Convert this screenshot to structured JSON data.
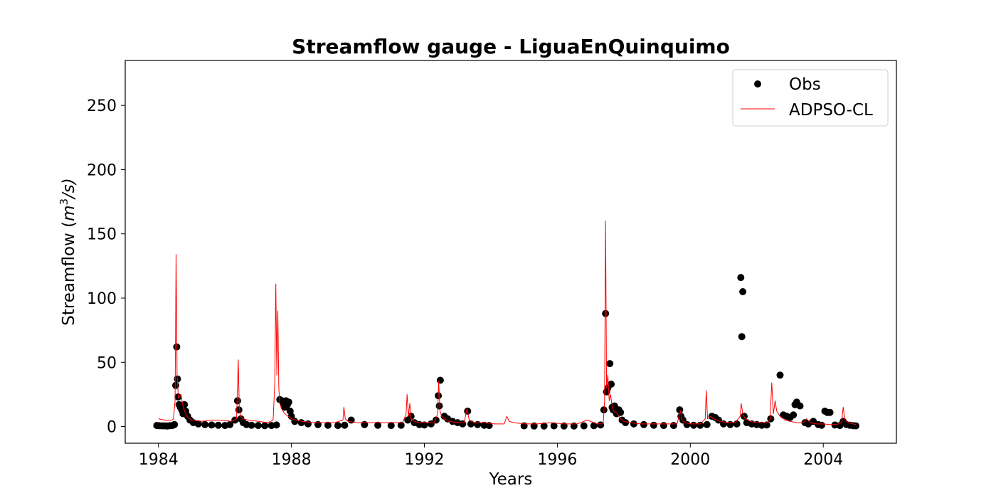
{
  "chart_data": {
    "type": "line",
    "title": "Streamflow gauge - LiguaEnQuinquimo",
    "xlabel": "Years",
    "ylabel_main": "Streamflow (",
    "ylabel_m": "m",
    "ylabel_exp": "3",
    "ylabel_rest": "/s)",
    "xlim": [
      1983.0,
      2006.2
    ],
    "ylim": [
      -13,
      285
    ],
    "x_ticks": [
      1984,
      1988,
      1992,
      1996,
      2000,
      2004
    ],
    "x_tick_labels": [
      "1984",
      "1988",
      "1992",
      "1996",
      "2000",
      "2004"
    ],
    "y_ticks": [
      0,
      50,
      100,
      150,
      200,
      250
    ],
    "y_tick_labels": [
      "0",
      "50",
      "100",
      "150",
      "200",
      "250"
    ],
    "legend_position": "top-right",
    "colors": {
      "obs": "#000000",
      "sim": "#ff0000"
    },
    "series": [
      {
        "name": "Obs",
        "kind": "scatter",
        "color": "#000000",
        "x": [
          1983.95,
          1984.02,
          1984.1,
          1984.18,
          1984.26,
          1984.34,
          1984.42,
          1984.48,
          1984.52,
          1984.55,
          1984.57,
          1984.59,
          1984.62,
          1984.66,
          1984.7,
          1984.74,
          1984.78,
          1984.82,
          1984.88,
          1984.95,
          1985.05,
          1985.2,
          1985.4,
          1985.6,
          1985.8,
          1986.0,
          1986.15,
          1986.3,
          1986.38,
          1986.42,
          1986.48,
          1986.55,
          1986.65,
          1986.8,
          1987.0,
          1987.2,
          1987.4,
          1987.55,
          1987.65,
          1987.72,
          1987.76,
          1987.8,
          1987.84,
          1987.88,
          1987.92,
          1987.96,
          1988.0,
          1988.1,
          1988.3,
          1988.5,
          1988.8,
          1989.1,
          1989.4,
          1989.6,
          1989.8,
          1990.2,
          1990.6,
          1991.0,
          1991.3,
          1991.5,
          1991.6,
          1991.7,
          1991.85,
          1992.0,
          1992.2,
          1992.35,
          1992.42,
          1992.45,
          1992.48,
          1992.6,
          1992.7,
          1992.85,
          1993.0,
          1993.15,
          1993.3,
          1993.4,
          1993.6,
          1993.8,
          1993.95,
          1995.0,
          1995.3,
          1995.6,
          1995.9,
          1996.2,
          1996.5,
          1996.8,
          1997.1,
          1997.3,
          1997.4,
          1997.45,
          1997.48,
          1997.52,
          1997.58,
          1997.62,
          1997.65,
          1997.68,
          1997.72,
          1997.78,
          1997.85,
          1997.9,
          1997.95,
          1998.05,
          1998.3,
          1998.6,
          1998.9,
          1999.2,
          1999.5,
          1999.68,
          1999.72,
          1999.78,
          1999.9,
          2000.1,
          2000.3,
          2000.5,
          2000.65,
          2000.75,
          2000.85,
          2001.0,
          2001.2,
          2001.4,
          2001.52,
          2001.55,
          2001.58,
          2001.62,
          2001.7,
          2001.85,
          2002.0,
          2002.15,
          2002.3,
          2002.42,
          2002.7,
          2002.8,
          2002.9,
          2003.0,
          2003.1,
          2003.15,
          2003.2,
          2003.3,
          2003.45,
          2003.55,
          2003.7,
          2003.85,
          2003.95,
          2004.05,
          2004.12,
          2004.2,
          2004.35,
          2004.5,
          2004.6,
          2004.7,
          2004.8,
          2004.9,
          2004.98
        ],
        "y": [
          0.8,
          0.6,
          0.5,
          0.5,
          0.4,
          0.6,
          0.8,
          1.5,
          32,
          62,
          37,
          23,
          17,
          15,
          13,
          10,
          17,
          12,
          8,
          5,
          3,
          2,
          1.5,
          1.2,
          1.0,
          0.8,
          1.5,
          5,
          20,
          13,
          6,
          3,
          1.5,
          1.0,
          0.8,
          0.6,
          0.8,
          1.2,
          21,
          20,
          18,
          15,
          20,
          17,
          19,
          12,
          8,
          4,
          3,
          2,
          1.5,
          1.0,
          0.8,
          1.0,
          5,
          1.5,
          1.0,
          0.8,
          1.0,
          5,
          8,
          3,
          1.5,
          1.2,
          2,
          5,
          24,
          16,
          36,
          8,
          6,
          4,
          3,
          2,
          12,
          2,
          1.5,
          1.0,
          0.8,
          0.5,
          0.4,
          0.4,
          0.5,
          0.4,
          0.4,
          0.5,
          0.6,
          1.2,
          13,
          88,
          27,
          30,
          49,
          33,
          15,
          13,
          16,
          10,
          13,
          11,
          5,
          3,
          2,
          1.5,
          1.0,
          0.8,
          0.8,
          13,
          8,
          5,
          1.5,
          1.0,
          1.0,
          1.5,
          8,
          7,
          5,
          2,
          1.5,
          2,
          116,
          70,
          105,
          8,
          3,
          2,
          1.5,
          1.0,
          1.2,
          6,
          40,
          9,
          8,
          7,
          9,
          17,
          19,
          16,
          3,
          2,
          4,
          1.5,
          1.0,
          12,
          11,
          11,
          1.2,
          0.8,
          4,
          1.5,
          1.0,
          0.6,
          0.5
        ]
      },
      {
        "name": "ADPSO-CL",
        "kind": "line",
        "color": "#ff0000",
        "x": [
          1984.0,
          1984.2,
          1984.4,
          1984.45,
          1984.5,
          1984.53,
          1984.56,
          1984.6,
          1984.68,
          1984.72,
          1984.76,
          1984.85,
          1985.0,
          1985.3,
          1985.6,
          1985.9,
          1986.2,
          1986.35,
          1986.4,
          1986.43,
          1986.47,
          1986.55,
          1986.7,
          1987.0,
          1987.3,
          1987.45,
          1987.5,
          1987.53,
          1987.56,
          1987.59,
          1987.62,
          1987.65,
          1987.7,
          1987.8,
          1988.0,
          1988.3,
          1988.7,
          1989.0,
          1989.3,
          1989.55,
          1989.58,
          1989.62,
          1989.7,
          1990.0,
          1990.5,
          1991.0,
          1991.35,
          1991.45,
          1991.48,
          1991.52,
          1991.56,
          1991.6,
          1991.7,
          1991.85,
          1992.0,
          1992.3,
          1992.4,
          1992.43,
          1992.47,
          1992.52,
          1992.6,
          1992.75,
          1993.0,
          1993.2,
          1993.28,
          1993.35,
          1993.5,
          1993.8,
          1994.1,
          1994.4,
          1994.48,
          1994.55,
          1994.7,
          1995.0,
          1995.4,
          1995.8,
          1996.2,
          1996.6,
          1996.9,
          1997.2,
          1997.38,
          1997.42,
          1997.45,
          1997.48,
          1997.52,
          1997.56,
          1997.6,
          1997.65,
          1997.7,
          1997.8,
          1997.9,
          1998.0,
          1998.2,
          1998.5,
          1998.8,
          1999.2,
          1999.6,
          1999.7,
          1999.75,
          1999.85,
          2000.0,
          2000.3,
          2000.45,
          2000.48,
          2000.52,
          2000.6,
          2000.7,
          2000.8,
          2000.9,
          2001.1,
          2001.35,
          2001.5,
          2001.53,
          2001.58,
          2001.65,
          2001.8,
          2002.0,
          2002.3,
          2002.4,
          2002.45,
          2002.5,
          2002.55,
          2002.6,
          2002.7,
          2002.85,
          2003.0,
          2003.2,
          2003.4,
          2003.5,
          2003.6,
          2003.8,
          2004.0,
          2004.2,
          2004.4,
          2004.55,
          2004.6,
          2004.65,
          2004.75,
          2004.9,
          2004.98
        ],
        "y": [
          6,
          5,
          5,
          6,
          20,
          134,
          40,
          22,
          25,
          18,
          14,
          8,
          5,
          4,
          5,
          5,
          4,
          6,
          52,
          15,
          8,
          6,
          5,
          4,
          3,
          5,
          35,
          111,
          40,
          90,
          30,
          18,
          14,
          10,
          6,
          4,
          3,
          3,
          3,
          5,
          15,
          6,
          4,
          3,
          3,
          3,
          3,
          10,
          25,
          8,
          18,
          6,
          4,
          3,
          3,
          3,
          10,
          35,
          12,
          8,
          6,
          4,
          3,
          3,
          14,
          5,
          3,
          3,
          2,
          2,
          8,
          4,
          3,
          2,
          2,
          3,
          2,
          2,
          5,
          2,
          2,
          20,
          160,
          30,
          40,
          20,
          25,
          15,
          12,
          10,
          6,
          4,
          3,
          2,
          2,
          2,
          2,
          12,
          5,
          3,
          2,
          2,
          6,
          28,
          6,
          8,
          6,
          5,
          4,
          3,
          3,
          8,
          18,
          10,
          6,
          4,
          3,
          3,
          5,
          34,
          10,
          20,
          12,
          8,
          5,
          4,
          3,
          3,
          6,
          3,
          2,
          2,
          1.5,
          1.5,
          3,
          15,
          5,
          3,
          2,
          1.5
        ]
      }
    ]
  }
}
